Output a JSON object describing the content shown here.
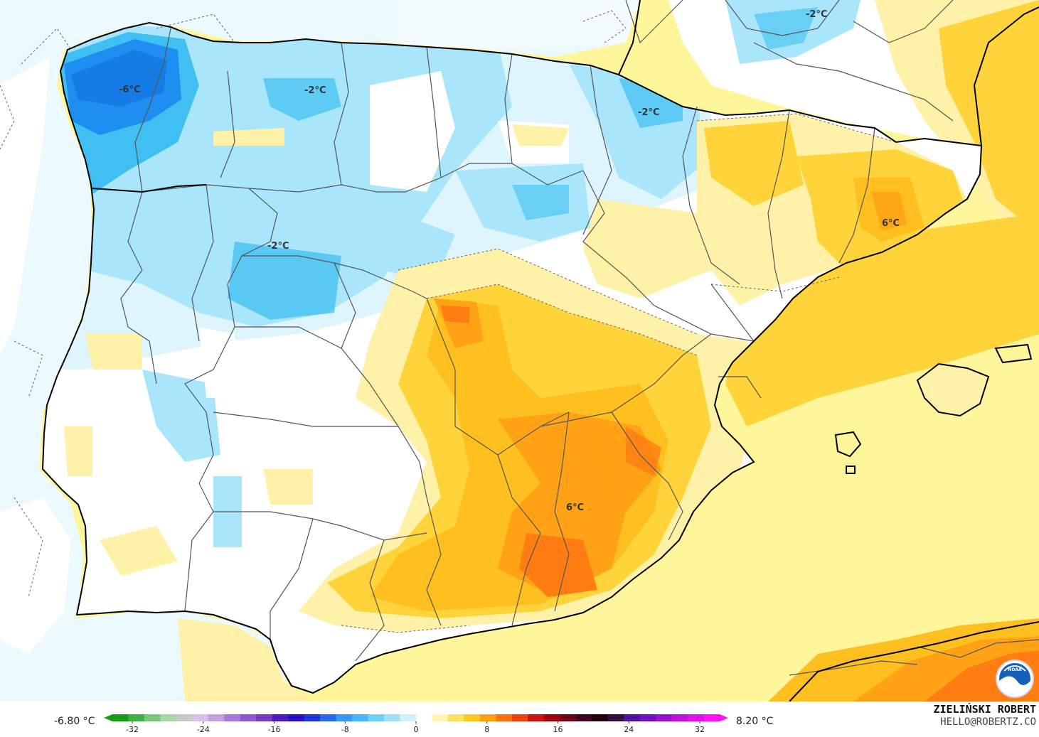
{
  "map": {
    "contour_labels": [
      {
        "id": "galicia",
        "text": "-6°C"
      },
      {
        "id": "cantabria",
        "text": "-2°C"
      },
      {
        "id": "navarra",
        "text": "-2°C"
      },
      {
        "id": "aquitaine",
        "text": "-2°C"
      },
      {
        "id": "castilla",
        "text": "-2°C"
      },
      {
        "id": "catalonia",
        "text": "6°C"
      },
      {
        "id": "murcia",
        "text": "6°C"
      }
    ],
    "colors": {
      "water_fill": "#fff59a",
      "strong_cold": "#1e8ff0",
      "cold": "#3fbff2",
      "cool": "#a9e6fb",
      "slightly_cool": "#def5fd",
      "neutral": "#ffffff",
      "slightly_warm": "#fff2a8",
      "warm": "#ffd33a",
      "warmer": "#ffbf1f",
      "hot": "#ffa215",
      "hottest": "#ff7d12"
    }
  },
  "legend": {
    "min_label": "-6.80 °C",
    "max_label": "8.20 °C",
    "ticks": [
      "-32",
      "-24",
      "-16",
      "-8",
      "0",
      "8",
      "16",
      "24",
      "32"
    ],
    "colors": [
      "#1a9a1a",
      "#40b040",
      "#78c878",
      "#a8d8a8",
      "#c8c8c8",
      "#d8c0e8",
      "#c4a0e0",
      "#a878d8",
      "#9058d0",
      "#7838c8",
      "#5018c0",
      "#2810c8",
      "#1838e0",
      "#2868f0",
      "#3898f8",
      "#48b8f8",
      "#70d0f8",
      "#a0e0fa",
      "#d0f0fc",
      "#ffffff",
      "#fff4b0",
      "#ffe060",
      "#ffc820",
      "#ffa010",
      "#ff7010",
      "#f04010",
      "#d01010",
      "#a00010",
      "#700018",
      "#400020",
      "#200010",
      "#301040",
      "#5010a0",
      "#7010c0",
      "#9810d0",
      "#c010e0",
      "#e010f0",
      "#ff10f8"
    ]
  },
  "credit": {
    "name": "ZIELIŃSKI ROBERT",
    "email": "HELLO@ROBERTZ.CO"
  },
  "logo": {
    "text": "NOAA"
  }
}
